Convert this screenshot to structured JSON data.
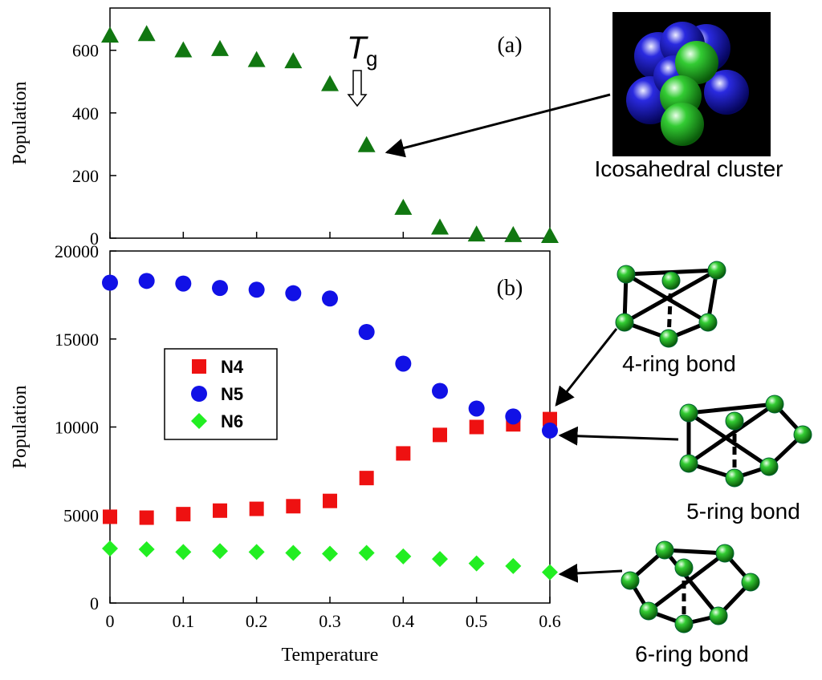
{
  "chart_data": [
    {
      "type": "scatter",
      "panel_label": "(a)",
      "y_label": "Population",
      "tg_main": "T",
      "tg_sub": "g",
      "x": [
        0,
        0.05,
        0.1,
        0.15,
        0.2,
        0.25,
        0.3,
        0.35,
        0.4,
        0.45,
        0.5,
        0.55,
        0.6
      ],
      "series": [
        {
          "name": null,
          "color": "#117711",
          "marker": "triangle",
          "values": [
            645,
            650,
            598,
            602,
            567,
            563,
            490,
            295,
            95,
            32,
            10,
            8,
            5
          ]
        }
      ],
      "xlim": [
        0,
        0.6
      ],
      "xticks": [
        0,
        0.1,
        0.2,
        0.3,
        0.4,
        0.5,
        0.6
      ],
      "ylim": [
        0,
        735
      ],
      "yticks": [
        0,
        200,
        400,
        600
      ]
    },
    {
      "type": "scatter",
      "panel_label": "(b)",
      "y_label": "Population",
      "x_label": "Temperature",
      "x": [
        0,
        0.05,
        0.1,
        0.15,
        0.2,
        0.25,
        0.3,
        0.35,
        0.4,
        0.45,
        0.5,
        0.55,
        0.6
      ],
      "series": [
        {
          "name": "N4",
          "color": "#ee1111",
          "marker": "square",
          "values": [
            4900,
            4850,
            5050,
            5250,
            5350,
            5500,
            5800,
            7100,
            8500,
            9550,
            10000,
            10150,
            10450
          ]
        },
        {
          "name": "N5",
          "color": "#1111e6",
          "marker": "circle",
          "values": [
            18200,
            18300,
            18150,
            17900,
            17800,
            17600,
            17300,
            15400,
            13600,
            12050,
            11050,
            10600,
            9800
          ]
        },
        {
          "name": "N6",
          "color": "#22ee22",
          "marker": "diamond",
          "values": [
            3100,
            3050,
            2900,
            2950,
            2900,
            2850,
            2800,
            2850,
            2650,
            2500,
            2250,
            2100,
            1750
          ]
        }
      ],
      "xlim": [
        0,
        0.6
      ],
      "xticks": [
        0,
        0.1,
        0.2,
        0.3,
        0.4,
        0.5,
        0.6
      ],
      "ylim": [
        0,
        20000
      ],
      "yticks": [
        0,
        5000,
        10000,
        15000,
        20000
      ],
      "legend": "left"
    }
  ],
  "labels": {
    "icosahedral": "Icosahedral cluster",
    "ring4": "4-ring bond",
    "ring5": "5-ring bond",
    "ring6": "6-ring bond"
  }
}
